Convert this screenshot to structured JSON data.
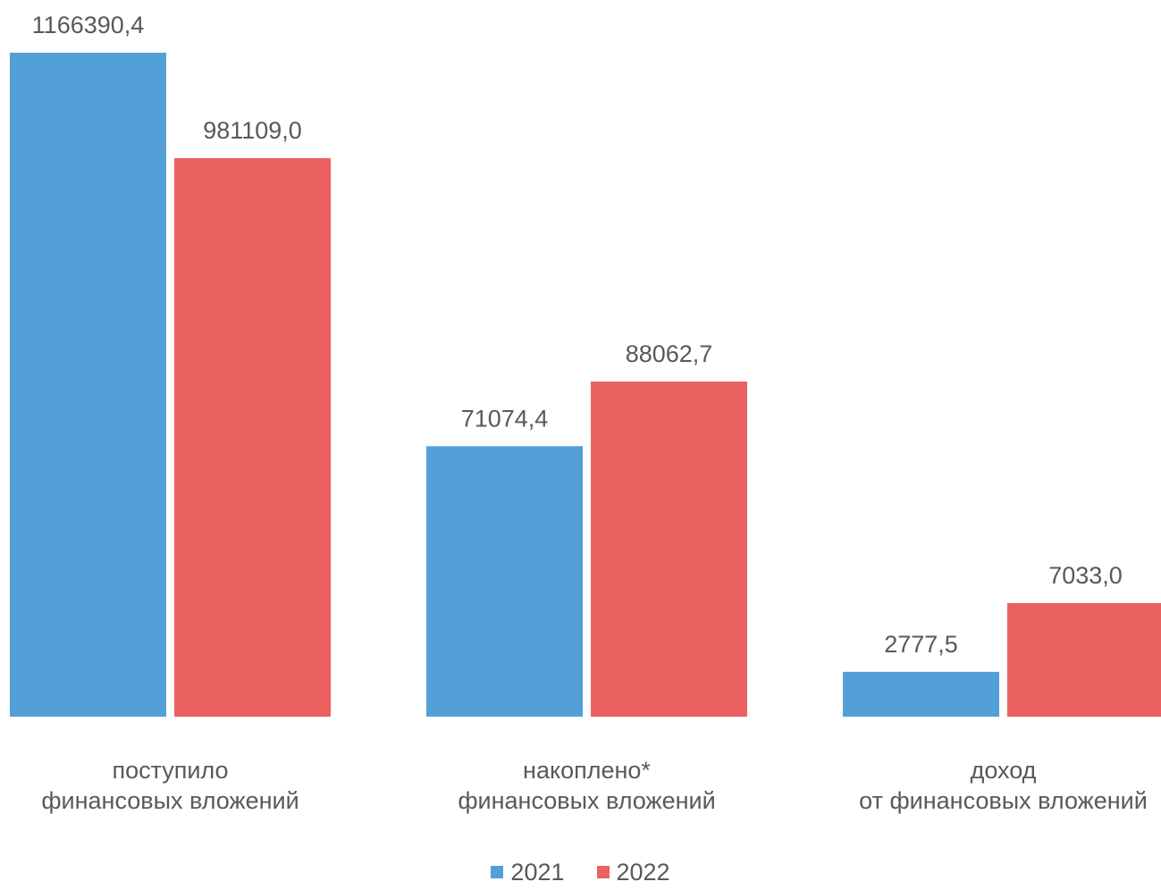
{
  "chart_data": {
    "type": "bar",
    "title": "",
    "xlabel": "",
    "ylabel": "",
    "categories": [
      [
        "поступило",
        "финансовых вложений"
      ],
      [
        "накоплено*",
        "финансовых вложений"
      ],
      [
        "доход",
        "от  финансовых вложений"
      ]
    ],
    "series": [
      {
        "name": "2021",
        "color": "#539FD7",
        "values": [
          1166390.4,
          71074.4,
          2777.5
        ],
        "labels": [
          "1166390,4",
          "71074,4",
          "2777,5"
        ]
      },
      {
        "name": "2022",
        "color": "#EB6060",
        "values": [
          981109.0,
          88062.7,
          7033.0
        ],
        "labels": [
          "981109,0",
          "88062,7",
          "7033,0"
        ]
      }
    ],
    "note": "Bars are scaled per category group (not a shared linear axis)",
    "legend": "bottom",
    "grid": false
  }
}
